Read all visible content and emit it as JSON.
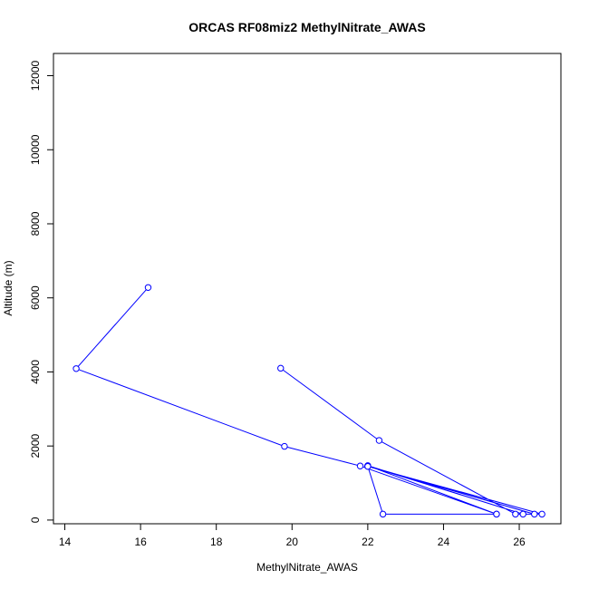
{
  "chart_data": {
    "type": "line",
    "title": "ORCAS RF08miz2 MethylNitrate_AWAS",
    "xlabel": "MethylNitrate_AWAS",
    "ylabel": "Altitude (m)",
    "xlim": [
      13.7,
      27.1
    ],
    "ylim": [
      -100,
      12600
    ],
    "xticks": [
      14,
      16,
      18,
      20,
      22,
      24,
      26
    ],
    "yticks": [
      0,
      2000,
      4000,
      6000,
      8000,
      10000,
      12000
    ],
    "grid": false,
    "series_color": "#0000ff",
    "points": [
      {
        "x": 16.2,
        "y": 6280
      },
      {
        "x": 14.3,
        "y": 4090
      },
      {
        "x": 19.8,
        "y": 1990
      },
      {
        "x": 21.8,
        "y": 1460
      },
      {
        "x": 25.4,
        "y": 160
      },
      {
        "x": 22.0,
        "y": 1470
      },
      {
        "x": 26.1,
        "y": 160
      },
      {
        "x": 22.0,
        "y": 1460
      },
      {
        "x": 26.4,
        "y": 160
      },
      {
        "x": 22.0,
        "y": 1450
      },
      {
        "x": 26.6,
        "y": 160
      },
      {
        "x": 25.9,
        "y": 160
      },
      {
        "x": 22.3,
        "y": 2150
      },
      {
        "x": 19.7,
        "y": 4100
      }
    ],
    "extra_segment": [
      {
        "x": 22.0,
        "y": 1450
      },
      {
        "x": 22.4,
        "y": 160
      },
      {
        "x": 25.4,
        "y": 160
      }
    ]
  }
}
